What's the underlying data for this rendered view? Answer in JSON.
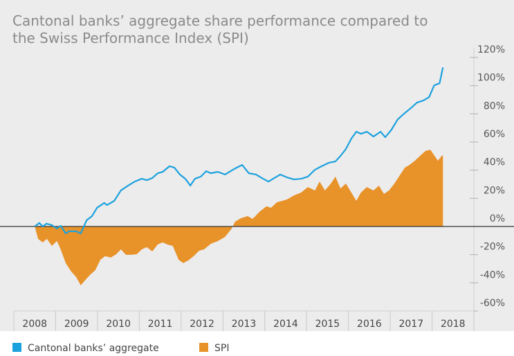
{
  "chart_data": {
    "type": "line_area",
    "title": "Cantonal banks’ aggregate share performance compared to the Swiss Performance Index (SPI)",
    "categories": [
      "2008",
      "2009",
      "2010",
      "2011",
      "2012",
      "2013",
      "2014",
      "2015",
      "2016",
      "2017",
      "2018"
    ],
    "xlim": [
      2008,
      2019
    ],
    "ylim": [
      -60,
      120
    ],
    "yticks": [
      {
        "value": 120,
        "label": "120%"
      },
      {
        "value": 100,
        "label": "100%"
      },
      {
        "value": 80,
        "label": "80%"
      },
      {
        "value": 60,
        "label": "60%"
      },
      {
        "value": 40,
        "label": "40%"
      },
      {
        "value": 20,
        "label": "20%"
      },
      {
        "value": 0,
        "label": "0%"
      },
      {
        "value": -20,
        "label": "-20%"
      },
      {
        "value": -40,
        "label": "-40%"
      },
      {
        "value": -60,
        "label": "-60%"
      }
    ],
    "series": [
      {
        "name": "Cantonal banks’ aggregate",
        "color": "#1ba1de",
        "kind": "line",
        "x": [
          2008.5,
          2008.61,
          2008.69,
          2008.78,
          2008.91,
          2009.03,
          2009.12,
          2009.24,
          2009.32,
          2009.49,
          2009.6,
          2009.74,
          2009.87,
          2009.99,
          2010.16,
          2010.23,
          2010.4,
          2010.56,
          2010.73,
          2010.89,
          2011.06,
          2011.18,
          2011.31,
          2011.44,
          2011.56,
          2011.72,
          2011.84,
          2011.97,
          2012.1,
          2012.22,
          2012.33,
          2012.47,
          2012.6,
          2012.71,
          2012.88,
          2013.05,
          2013.21,
          2013.33,
          2013.46,
          2013.62,
          2013.79,
          2013.96,
          2014.09,
          2014.2,
          2014.37,
          2014.53,
          2014.7,
          2014.87,
          2015.03,
          2015.2,
          2015.36,
          2015.53,
          2015.69,
          2015.81,
          2015.94,
          2016.07,
          2016.19,
          2016.3,
          2016.44,
          2016.6,
          2016.77,
          2016.88,
          2017.02,
          2017.18,
          2017.35,
          2017.51,
          2017.64,
          2017.79,
          2017.93,
          2018.05,
          2018.18,
          2018.26
        ],
        "values": [
          0,
          2.5,
          0,
          2.0,
          1.0,
          -1.5,
          0.5,
          -4.9,
          -3.4,
          -3.4,
          -4.9,
          4.4,
          7.4,
          13.3,
          16.7,
          15.2,
          18.2,
          25.6,
          29.0,
          31.9,
          33.9,
          32.9,
          34.4,
          37.8,
          38.8,
          42.8,
          41.8,
          36.9,
          33.9,
          29.0,
          33.9,
          35.4,
          39.3,
          37.8,
          38.8,
          36.9,
          39.8,
          41.8,
          43.7,
          37.8,
          36.9,
          33.9,
          31.9,
          33.9,
          36.9,
          34.9,
          33.4,
          33.9,
          35.4,
          40.3,
          42.8,
          45.2,
          46.2,
          50.1,
          55.0,
          62.4,
          67.3,
          65.8,
          67.3,
          63.9,
          67.3,
          63.4,
          68.3,
          76.1,
          80.6,
          84.5,
          88.0,
          89.4,
          91.9,
          100.2,
          101.7,
          113.0
        ]
      },
      {
        "name": "SPI",
        "color": "#e8922a",
        "kind": "area",
        "x": [
          2008.5,
          2008.58,
          2008.69,
          2008.79,
          2008.91,
          2009.03,
          2009.12,
          2009.24,
          2009.37,
          2009.49,
          2009.6,
          2009.7,
          2009.82,
          2009.95,
          2010.07,
          2010.18,
          2010.32,
          2010.45,
          2010.56,
          2010.68,
          2010.81,
          2010.94,
          2011.06,
          2011.18,
          2011.31,
          2011.44,
          2011.56,
          2011.67,
          2011.8,
          2011.94,
          2012.05,
          2012.17,
          2012.3,
          2012.43,
          2012.55,
          2012.71,
          2012.88,
          2013.05,
          2013.21,
          2013.29,
          2013.43,
          2013.59,
          2013.71,
          2013.87,
          2014.04,
          2014.15,
          2014.29,
          2014.42,
          2014.53,
          2014.7,
          2014.87,
          2015.03,
          2015.2,
          2015.31,
          2015.44,
          2015.58,
          2015.69,
          2015.81,
          2015.94,
          2016.07,
          2016.19,
          2016.3,
          2016.44,
          2016.6,
          2016.73,
          2016.85,
          2016.97,
          2017.1,
          2017.23,
          2017.35,
          2017.46,
          2017.59,
          2017.73,
          2017.84,
          2017.96,
          2018.06,
          2018.14,
          2018.23,
          2018.26
        ],
        "values": [
          0,
          -8.8,
          -11.3,
          -8.8,
          -13.8,
          -10.3,
          -16.2,
          -26.0,
          -31.9,
          -35.9,
          -41.8,
          -38.3,
          -34.4,
          -30.9,
          -23.6,
          -21.1,
          -22.1,
          -19.7,
          -16.2,
          -20.1,
          -20.1,
          -19.7,
          -16.2,
          -14.7,
          -17.7,
          -12.8,
          -11.3,
          -12.8,
          -13.8,
          -23.6,
          -26.0,
          -24.1,
          -21.1,
          -17.2,
          -16.2,
          -12.3,
          -10.3,
          -7.4,
          -1.5,
          3.4,
          5.9,
          7.4,
          5.4,
          10.3,
          14.3,
          13.3,
          17.2,
          18.2,
          19.2,
          22.1,
          24.1,
          28.0,
          25.6,
          31.9,
          25.6,
          30.5,
          35.4,
          27.0,
          30.5,
          24.1,
          18.2,
          24.1,
          28.0,
          25.6,
          29.0,
          23.1,
          25.6,
          30.5,
          36.4,
          41.8,
          43.7,
          46.7,
          50.6,
          53.6,
          54.5,
          50.1,
          46.7,
          50.1,
          50.6
        ]
      }
    ]
  }
}
